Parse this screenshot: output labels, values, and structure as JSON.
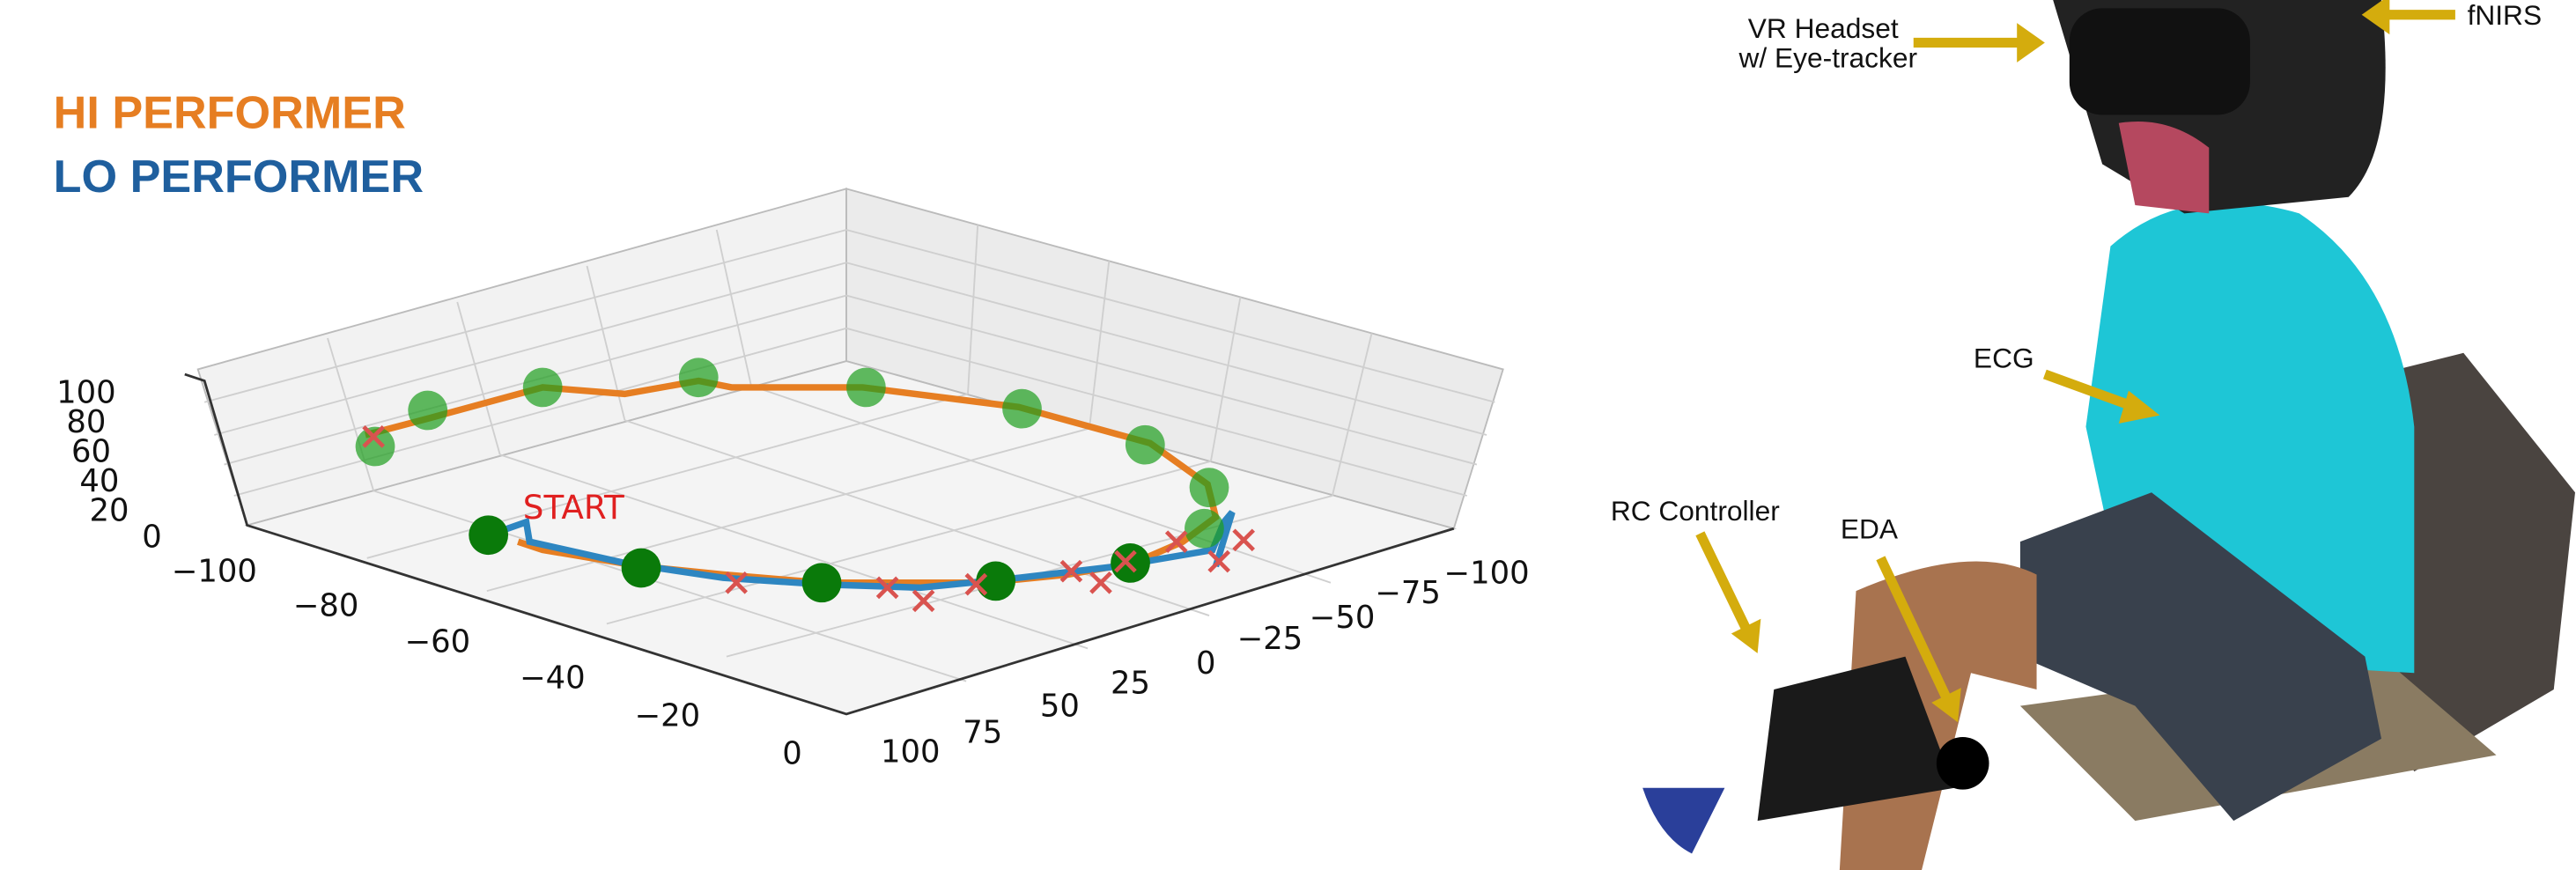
{
  "legend": {
    "hi": "HI PERFORMER",
    "lo": "LO PERFORMER"
  },
  "plot": {
    "start_label": "START",
    "z_ticks": [
      "100",
      "80",
      "60",
      "40",
      "20",
      "0"
    ],
    "x_ticks": [
      "−100",
      "−80",
      "−60",
      "−40",
      "−20",
      "0"
    ],
    "y_ticks": [
      "100",
      "75",
      "50",
      "25",
      "0",
      "−25",
      "−50",
      "−75",
      "−100"
    ]
  },
  "photo": {
    "labels": {
      "headset_1": "VR Headset",
      "headset_2": "w/ Eye-tracker",
      "fnirs": "fNIRS",
      "ecg": "ECG",
      "rc": "RC Controller",
      "eda": "EDA"
    }
  }
}
